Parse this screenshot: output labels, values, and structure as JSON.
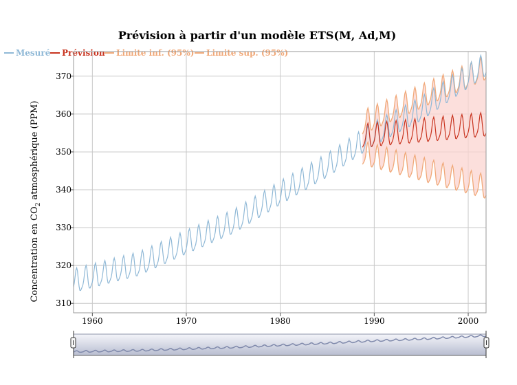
{
  "chart_data": {
    "type": "line",
    "title": "Prévision à partir d'un modèle ETS(M, Ad,M)",
    "ylabel_prefix": "Concentration en CO",
    "ylabel_sub": "2",
    "ylabel_suffix": " atmosphérique (PPM)",
    "xlabel": "",
    "xlim": [
      1958.0,
      2001.9
    ],
    "ylim": [
      307.5,
      376.5
    ],
    "x_ticks": [
      1960,
      1970,
      1980,
      1990,
      2000
    ],
    "y_ticks": [
      310,
      320,
      330,
      340,
      350,
      360,
      370
    ],
    "grid": true,
    "legend_position": "top-left",
    "legend": [
      {
        "label": "Mesuré",
        "color": "#8fb8d6"
      },
      {
        "label": "Prévision",
        "color": "#c8331e"
      },
      {
        "label": "Limite inf. (95%)",
        "color": "#f0a878"
      },
      {
        "label": "Limite sup. (95%)",
        "color": "#f0a878"
      }
    ],
    "band_color": "#fbd4d0",
    "series": [
      {
        "name": "Mesuré",
        "color": "#8fb8d6",
        "x_start": 1958.0,
        "x_end": 2001.92,
        "sampling": "monthly",
        "annual_mean": [
          {
            "year": 1958,
            "value": 315.5
          },
          {
            "year": 1960,
            "value": 316.8
          },
          {
            "year": 1965,
            "value": 320.0
          },
          {
            "year": 1970,
            "value": 325.7
          },
          {
            "year": 1975,
            "value": 331.1
          },
          {
            "year": 1980,
            "value": 338.7
          },
          {
            "year": 1985,
            "value": 346.0
          },
          {
            "year": 1990,
            "value": 354.4
          },
          {
            "year": 1995,
            "value": 360.9
          },
          {
            "year": 2000,
            "value": 369.5
          },
          {
            "year": 2002,
            "value": 373.0
          }
        ],
        "seasonal_amplitude": 3.0
      },
      {
        "name": "Prévision",
        "color": "#c8331e",
        "x_start": 1988.75,
        "x_end": 2001.92,
        "sampling": "monthly",
        "level": 353.8,
        "level_end": 356.8,
        "seasonal_amplitude": 3.0
      },
      {
        "name": "Limite inf. (95%)",
        "color": "#f0a878",
        "x_start": 1988.75,
        "x_end": 2001.92,
        "start_offset": -4.5,
        "end_offset": -16.5
      },
      {
        "name": "Limite sup. (95%)",
        "color": "#f0a878",
        "x_start": 1988.75,
        "x_end": 2001.92,
        "start_offset": 3.5,
        "end_offset": 15.0
      }
    ],
    "navigator": {
      "range": [
        1958.0,
        2001.92
      ]
    }
  }
}
